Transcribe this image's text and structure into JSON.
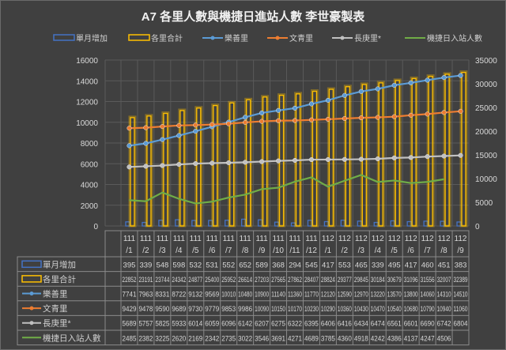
{
  "chart_data": {
    "type": "bar",
    "title": "A7 各里人數與機捷日進站人數  李世豪製表",
    "categories": [
      "111/1",
      "111/2",
      "111/3",
      "111/4",
      "111/5",
      "111/6",
      "111/7",
      "111/8",
      "111/9",
      "111/10",
      "111/11",
      "111/12",
      "112/1",
      "112/2",
      "112/3",
      "112/4",
      "112/5",
      "112/6",
      "112/7",
      "112/8",
      "112/9"
    ],
    "left_axis": {
      "range": [
        0,
        16000
      ],
      "ticks": [
        "0",
        "2000",
        "4000",
        "6000",
        "8000",
        "10000",
        "12000",
        "14000",
        "16000"
      ]
    },
    "right_axis": {
      "range": [
        0,
        35000
      ],
      "ticks": [
        "0",
        "5000",
        "10000",
        "15000",
        "20000",
        "25000",
        "30000",
        "35000"
      ]
    },
    "grid": true,
    "legend_placement": "top",
    "series": [
      {
        "name": "單月增加",
        "kind": "bar-outline",
        "axis": "left",
        "color": "#4472c4",
        "values": [
          395,
          339,
          548,
          598,
          532,
          531,
          552,
          652,
          589,
          368,
          294,
          545,
          417,
          553,
          465,
          339,
          495,
          417,
          460,
          451,
          383
        ]
      },
      {
        "name": "各里合計",
        "kind": "bar-outline",
        "axis": "right",
        "color": "#ffc000",
        "values": [
          22852,
          23191,
          23744,
          24342,
          24877,
          25400,
          25952,
          26614,
          27203,
          27565,
          27862,
          28407,
          28824,
          29377,
          29845,
          30184,
          30679,
          31096,
          31556,
          32007,
          32389
        ]
      },
      {
        "name": "樂善里",
        "kind": "line-marker",
        "axis": "left",
        "color": "#5b9bd5",
        "values": [
          7741,
          7963,
          8331,
          8722,
          9132,
          9569,
          10010,
          10480,
          10900,
          11140,
          11360,
          11770,
          12120,
          12590,
          12970,
          13220,
          13570,
          13800,
          14060,
          14310,
          14510
        ]
      },
      {
        "name": "文青里",
        "kind": "line-marker",
        "axis": "left",
        "color": "#ed7d31",
        "values": [
          9429,
          9478,
          9590,
          9689,
          9730,
          9779,
          9853,
          9986,
          10090,
          10150,
          10170,
          10230,
          10290,
          10360,
          10430,
          10470,
          10540,
          10680,
          10790,
          10940,
          11060
        ]
      },
      {
        "name": "長庚里*",
        "kind": "line-marker",
        "axis": "left",
        "color": "#c0c0c0",
        "values": [
          5689,
          5757,
          5825,
          5933,
          6014,
          6059,
          6096,
          6142,
          6207,
          6275,
          6322,
          6395,
          6406,
          6416,
          6434,
          6474,
          6561,
          6601,
          6690,
          6742,
          6804
        ]
      },
      {
        "name": "機捷日入站人數",
        "kind": "line",
        "axis": "left",
        "color": "#70ad47",
        "values": [
          2485,
          2382,
          3225,
          2620,
          2169,
          2342,
          2735,
          3022,
          3546,
          3691,
          4271,
          4689,
          3785,
          4360,
          4918,
          4242,
          4386,
          4137,
          4247,
          4506,
          null
        ]
      }
    ]
  }
}
